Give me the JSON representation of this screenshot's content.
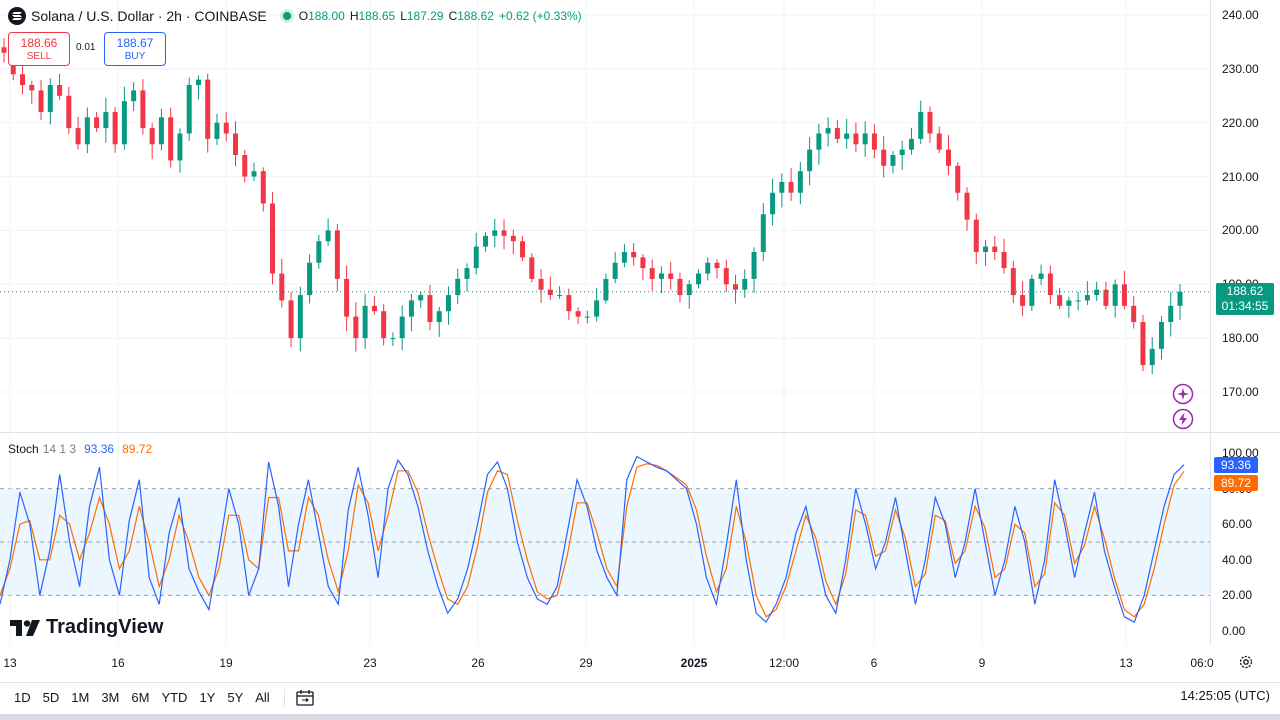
{
  "header": {
    "symbol_title": "Solana / U.S. Dollar · 2h · COINBASE",
    "ohlc": {
      "o_label": "O",
      "o_value": "188.00",
      "h_label": "H",
      "h_value": "188.65",
      "l_label": "L",
      "l_value": "187.29",
      "c_label": "C",
      "c_value": "188.62",
      "change": "+0.62 (+0.33%)"
    }
  },
  "trade": {
    "sell_price": "188.66",
    "sell_label": "SELL",
    "spread": "0.01",
    "buy_price": "188.67",
    "buy_label": "BUY"
  },
  "price_axis": {
    "ticks": [
      "240.00",
      "230.00",
      "220.00",
      "210.00",
      "200.00",
      "190.00",
      "180.00",
      "170.00"
    ],
    "current_price": "188.62",
    "countdown": "01:34:55"
  },
  "stoch": {
    "name": "Stoch",
    "params": "14 1 3",
    "k_value": "93.36",
    "d_value": "89.72",
    "ticks": [
      "100.00",
      "80.00",
      "60.00",
      "40.00",
      "20.00",
      "0.00"
    ]
  },
  "time_axis": {
    "labels": [
      {
        "text": "13",
        "bold": false
      },
      {
        "text": "16",
        "bold": false
      },
      {
        "text": "19",
        "bold": false
      },
      {
        "text": "23",
        "bold": false
      },
      {
        "text": "26",
        "bold": false
      },
      {
        "text": "29",
        "bold": false
      },
      {
        "text": "2025",
        "bold": true
      },
      {
        "text": "12:00",
        "bold": false
      },
      {
        "text": "6",
        "bold": false
      },
      {
        "text": "9",
        "bold": false
      },
      {
        "text": "13",
        "bold": false
      },
      {
        "text": "06:0",
        "bold": false
      }
    ]
  },
  "bottom_bar": {
    "ranges": [
      "1D",
      "5D",
      "1M",
      "3M",
      "6M",
      "YTD",
      "1Y",
      "5Y",
      "All"
    ],
    "clock": "14:25:05 (UTC)"
  },
  "branding": {
    "logo_text": "TradingView"
  },
  "colors": {
    "up": "#089981",
    "down": "#f23645",
    "k_line": "#2962ff",
    "d_line": "#ff6d00",
    "band_fill": "#e3f2fd",
    "accent_purple": "#9c27b0"
  },
  "chart_data": {
    "type": "candlestick",
    "series_close": [
      233,
      229,
      227,
      226,
      222,
      227,
      225,
      219,
      216,
      221,
      219,
      222,
      216,
      224,
      226,
      219,
      216,
      221,
      213,
      218,
      227,
      228,
      217,
      220,
      218,
      214,
      210,
      211,
      205,
      192,
      187,
      180,
      188,
      194,
      198,
      200,
      191,
      184,
      180,
      186,
      185,
      180,
      180,
      184,
      187,
      188,
      183,
      185,
      188,
      191,
      193,
      197,
      199,
      200,
      199,
      198,
      195,
      191,
      189,
      188,
      188,
      185,
      184,
      184,
      187,
      191,
      194,
      196,
      195,
      193,
      191,
      192,
      191,
      188,
      190,
      192,
      194,
      193,
      190,
      189,
      191,
      196,
      203,
      207,
      209,
      207,
      211,
      215,
      218,
      219,
      217,
      218,
      216,
      218,
      215,
      212,
      214,
      215,
      217,
      222,
      218,
      215,
      212,
      207,
      202,
      196,
      197,
      196,
      193,
      188,
      186,
      191,
      192,
      188,
      186,
      187,
      187,
      188,
      189,
      186,
      190,
      186,
      183,
      175,
      178,
      183,
      186,
      188.62
    ],
    "y_range": [
      165,
      242
    ],
    "stoch_k": [
      15,
      40,
      78,
      60,
      20,
      45,
      88,
      50,
      25,
      70,
      92,
      40,
      20,
      62,
      85,
      30,
      15,
      55,
      75,
      35,
      22,
      12,
      45,
      80,
      60,
      20,
      35,
      95,
      70,
      25,
      60,
      85,
      55,
      25,
      15,
      68,
      92,
      65,
      30,
      80,
      96,
      88,
      70,
      45,
      25,
      10,
      18,
      35,
      60,
      88,
      95,
      80,
      50,
      30,
      18,
      15,
      25,
      55,
      85,
      70,
      45,
      30,
      20,
      85,
      98,
      95,
      92,
      90,
      85,
      80,
      60,
      30,
      15,
      48,
      85,
      40,
      10,
      5,
      15,
      30,
      55,
      70,
      45,
      20,
      10,
      40,
      80,
      60,
      35,
      50,
      75,
      45,
      15,
      40,
      75,
      60,
      30,
      50,
      80,
      50,
      20,
      40,
      70,
      50,
      15,
      40,
      85,
      60,
      30,
      55,
      78,
      45,
      25,
      8,
      5,
      20,
      45,
      70,
      88,
      93.36
    ],
    "stoch_d": [
      20,
      35,
      60,
      62,
      40,
      40,
      65,
      60,
      40,
      55,
      75,
      60,
      35,
      45,
      70,
      50,
      25,
      40,
      65,
      50,
      30,
      20,
      35,
      65,
      65,
      40,
      35,
      75,
      75,
      45,
      45,
      75,
      65,
      40,
      22,
      45,
      82,
      72,
      45,
      65,
      90,
      90,
      78,
      55,
      35,
      18,
      15,
      25,
      48,
      78,
      90,
      88,
      62,
      40,
      22,
      18,
      20,
      42,
      72,
      72,
      55,
      35,
      25,
      70,
      92,
      94,
      93,
      90,
      86,
      82,
      68,
      42,
      22,
      35,
      70,
      50,
      20,
      8,
      12,
      25,
      45,
      65,
      52,
      28,
      15,
      32,
      68,
      65,
      42,
      45,
      68,
      52,
      25,
      32,
      65,
      62,
      38,
      45,
      70,
      58,
      30,
      35,
      60,
      55,
      25,
      32,
      72,
      65,
      38,
      48,
      70,
      52,
      30,
      12,
      8,
      15,
      35,
      60,
      82,
      89.72
    ],
    "stoch_range": [
      0,
      100
    ],
    "stoch_bands": [
      80,
      50,
      20
    ]
  }
}
